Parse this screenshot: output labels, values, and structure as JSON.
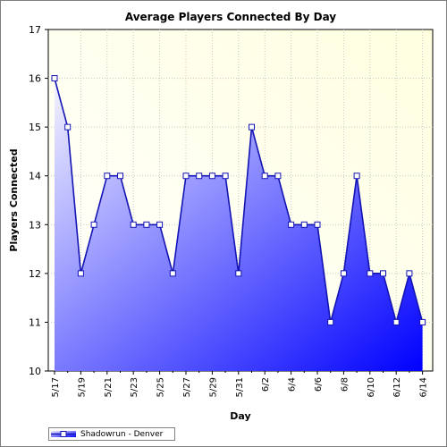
{
  "chart_data": {
    "type": "area",
    "title": "Average Players Connected By Day",
    "xlabel": "Day",
    "ylabel": "Players Connected",
    "ylim": [
      10,
      17
    ],
    "yticks": [
      10,
      11,
      12,
      13,
      14,
      15,
      16,
      17
    ],
    "categories": [
      "5/17",
      "5/18",
      "5/19",
      "5/20",
      "5/21",
      "5/22",
      "5/23",
      "5/24",
      "5/25",
      "5/26",
      "5/27",
      "5/28",
      "5/29",
      "5/30",
      "5/31",
      "6/1",
      "6/2",
      "6/3",
      "6/4",
      "6/5",
      "6/6",
      "6/7",
      "6/8",
      "6/9",
      "6/10",
      "6/11",
      "6/12",
      "6/13",
      "6/14"
    ],
    "tick_labels": [
      "5/17",
      "5/19",
      "5/21",
      "5/23",
      "5/25",
      "5/27",
      "5/29",
      "5/31",
      "6/2",
      "6/4",
      "6/6",
      "6/8",
      "6/10",
      "6/12",
      "6/14"
    ],
    "grid": true,
    "legend_position": "bottom-left",
    "series": [
      {
        "name": "Shadowrun - Denver",
        "values": [
          16,
          15,
          12,
          13,
          14,
          14,
          13,
          13,
          13,
          12,
          14,
          14,
          14,
          14,
          12,
          15,
          14,
          14,
          13,
          13,
          13,
          11,
          12,
          14,
          12,
          12,
          11,
          12,
          11
        ],
        "color": "#0000ff"
      }
    ],
    "colors": {
      "plot_bg_light": "#ffffe0",
      "plot_bg_white": "#ffffff",
      "area_light": "#f4f4ff",
      "area_dark": "#0000ff",
      "line": "#1414b4"
    }
  }
}
